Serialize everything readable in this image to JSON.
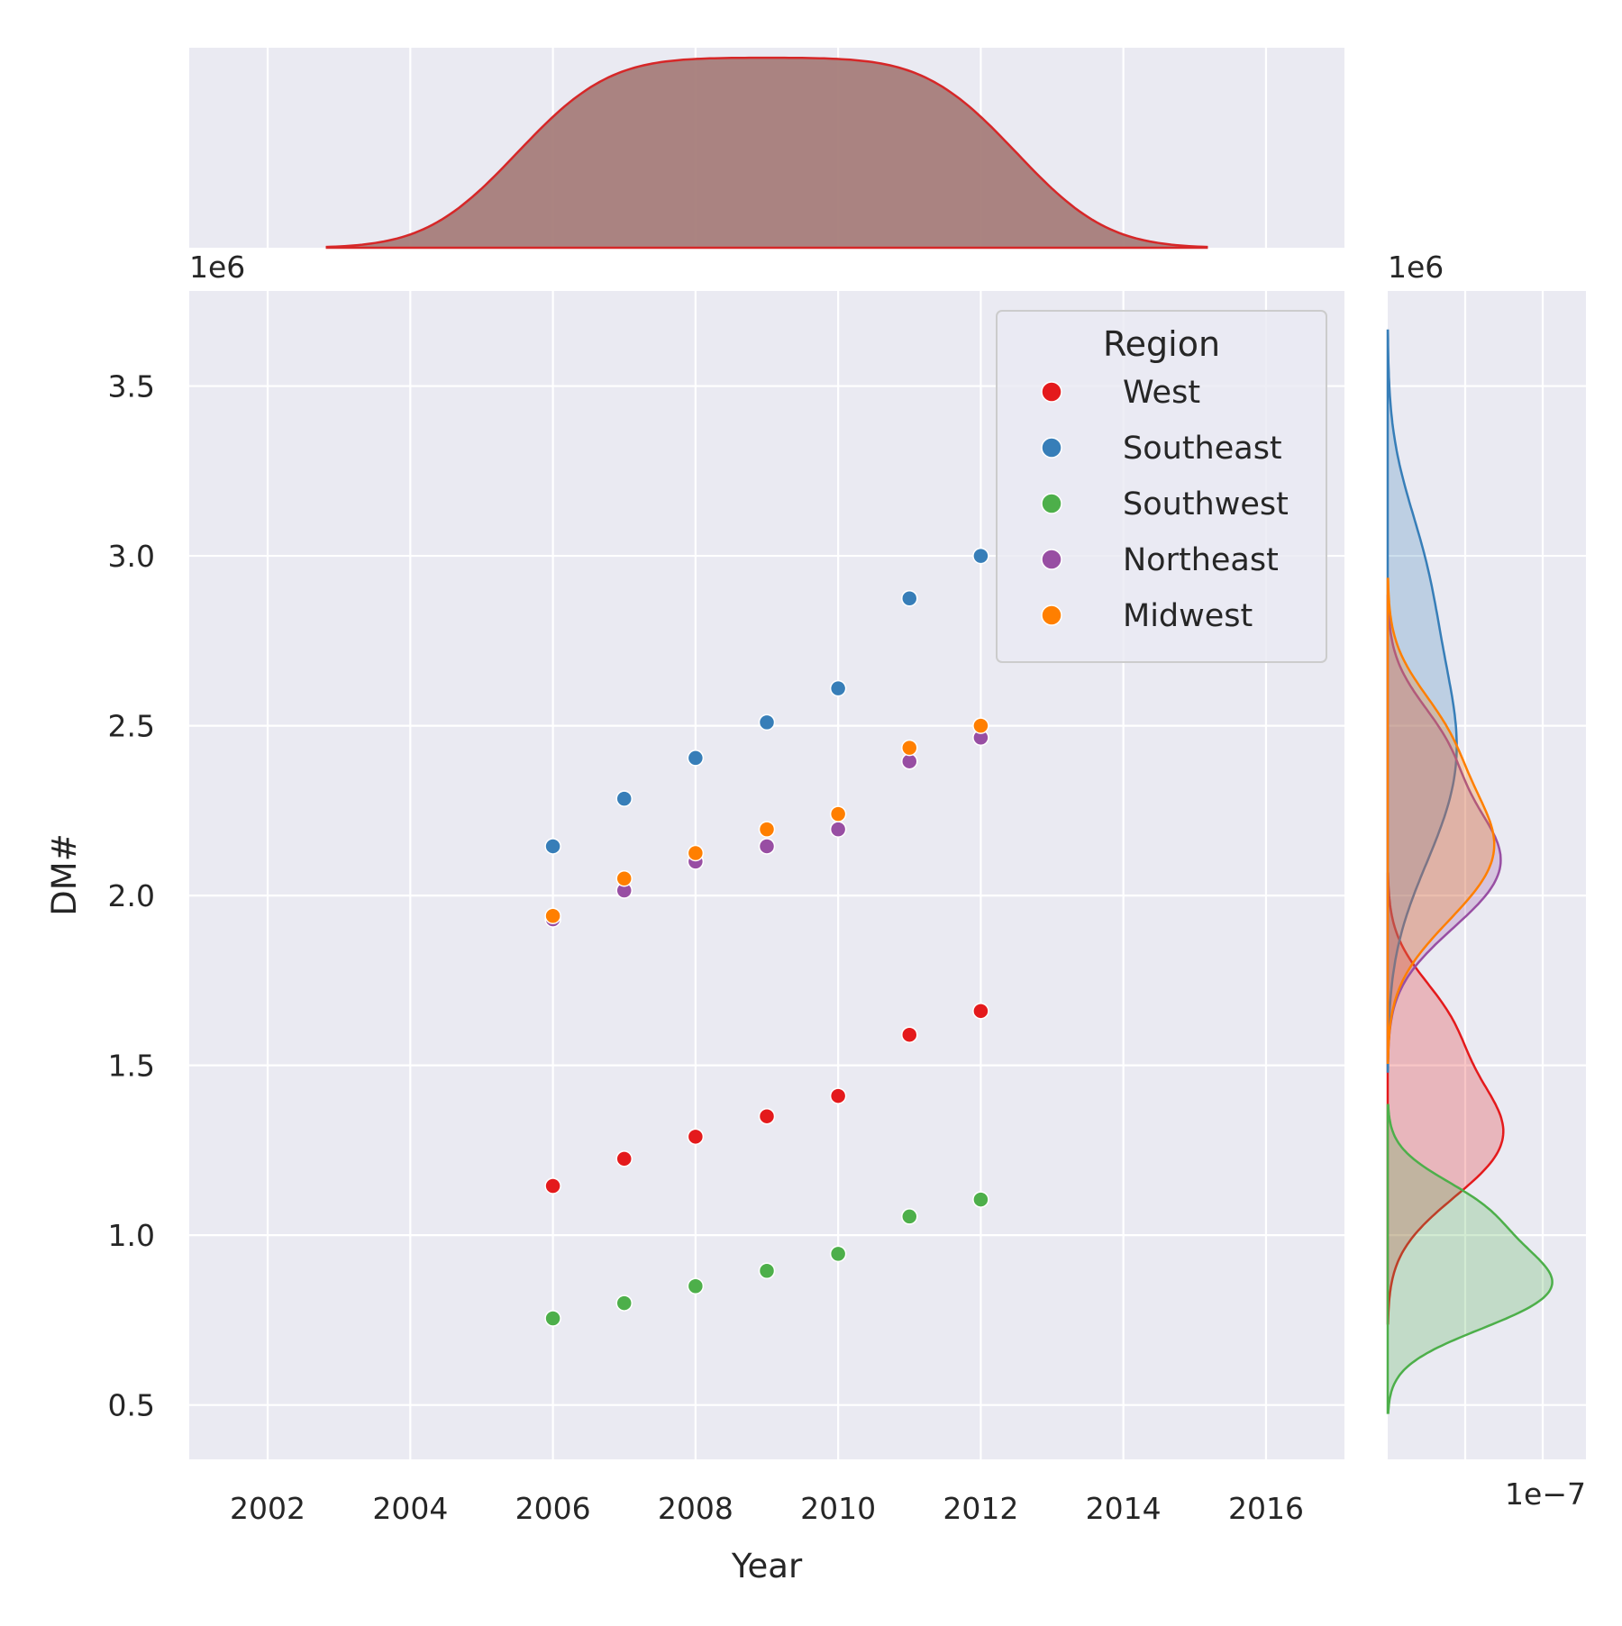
{
  "chart_data": {
    "type": "scatter",
    "xlabel": "Year",
    "ylabel": "DM#",
    "y_offset_text": "1e6",
    "top_margin_offset_text": "1e6",
    "right_margin_offset_text": "1e6",
    "right_margin_x_offset_text": "1e−7",
    "xlim": [
      2000.9,
      2017.1
    ],
    "ylim": [
      0.34,
      3.78
    ],
    "x_ticks": [
      2002,
      2004,
      2006,
      2008,
      2010,
      2012,
      2014,
      2016
    ],
    "y_ticks": [
      0.5,
      1.0,
      1.5,
      2.0,
      2.5,
      3.0,
      3.5
    ],
    "x_tick_labels": [
      "2002",
      "2004",
      "2006",
      "2008",
      "2010",
      "2012",
      "2014",
      "2016"
    ],
    "y_tick_labels": [
      "0.5",
      "1.0",
      "1.5",
      "2.0",
      "2.5",
      "3.0",
      "3.5"
    ],
    "y_units_note": "values in millions (×1e6)",
    "grid": true,
    "legend": {
      "title": "Region",
      "placement": "top-right"
    },
    "years": [
      2006,
      2007,
      2008,
      2009,
      2010,
      2011,
      2012
    ],
    "series": [
      {
        "name": "West",
        "color": "#e41a1c",
        "values": [
          1.145,
          1.225,
          1.29,
          1.35,
          1.41,
          1.59,
          1.66
        ]
      },
      {
        "name": "Southeast",
        "color": "#377eb8",
        "values": [
          2.145,
          2.285,
          2.405,
          2.51,
          2.61,
          2.875,
          3.0
        ]
      },
      {
        "name": "Southwest",
        "color": "#4daf4a",
        "values": [
          0.755,
          0.8,
          0.85,
          0.895,
          0.945,
          1.055,
          1.105
        ]
      },
      {
        "name": "Northeast",
        "color": "#984ea3",
        "values": [
          1.93,
          2.015,
          2.1,
          2.145,
          2.195,
          2.395,
          2.465
        ]
      },
      {
        "name": "Midwest",
        "color": "#ff7f00",
        "values": [
          1.94,
          2.05,
          2.125,
          2.195,
          2.24,
          2.435,
          2.5
        ]
      }
    ],
    "marginals": {
      "top": {
        "type": "kde",
        "variable": "Year",
        "fill": "#a67d7a",
        "stroke": "#d62728"
      },
      "right": {
        "type": "kde",
        "variable": "DM#",
        "by": "Region"
      }
    }
  }
}
